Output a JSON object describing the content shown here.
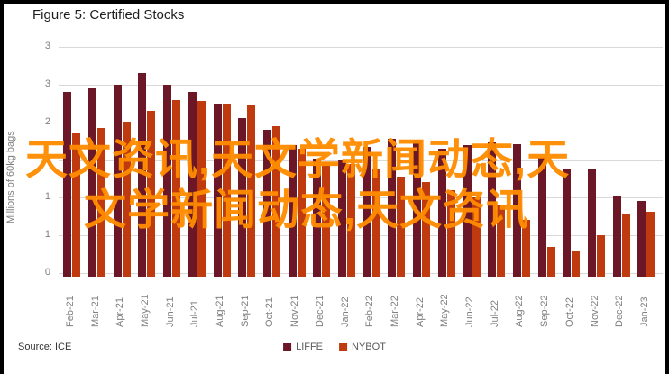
{
  "title": "Figure 5: Certified Stocks",
  "source": "Source: ICE",
  "watermark": {
    "line1": "天文资讯,天文学新闻动态,天",
    "line2": "文学新闻动态,天文资讯",
    "color": "#ff8c00"
  },
  "chart_data": {
    "type": "bar",
    "title": "Figure 5: Certified Stocks",
    "ylabel": "Millions of 60kg bags",
    "xlabel": "",
    "ylim": [
      0,
      3
    ],
    "ytick_step": 0.5,
    "ytick_labels_top_to_bottom": [
      "3",
      "3",
      "2",
      "2",
      "1",
      "1",
      "0"
    ],
    "grid": true,
    "legend_position": "bottom-center",
    "categories": [
      "Feb-21",
      "Mar-21",
      "Apr-21",
      "May-21",
      "Jun-21",
      "Jul-21",
      "Aug-21",
      "Sep-21",
      "Oct-21",
      "Nov-21",
      "Dec-21",
      "Jan-22",
      "Feb-22",
      "Mar-22",
      "Apr-22",
      "May-22",
      "Jun-22",
      "Jul-22",
      "Aug-22",
      "Sep-22",
      "Oct-22",
      "Nov-22",
      "Dec-22",
      "Jan-23"
    ],
    "series": [
      {
        "name": "LIFFE",
        "color": "#6b1728",
        "values": [
          2.45,
          2.5,
          2.55,
          2.7,
          2.55,
          2.45,
          2.3,
          2.1,
          1.95,
          1.75,
          1.57,
          1.55,
          1.72,
          1.83,
          1.82,
          1.7,
          1.74,
          1.78,
          1.76,
          1.58,
          1.43,
          1.44,
          1.06,
          1.0
        ]
      },
      {
        "name": "NYBOT",
        "color": "#bf3a0f",
        "values": [
          1.9,
          1.97,
          2.06,
          2.2,
          2.34,
          2.33,
          2.3,
          2.27,
          2.0,
          1.7,
          1.52,
          1.5,
          1.43,
          1.33,
          1.25,
          1.15,
          1.05,
          0.95,
          0.75,
          0.4,
          0.35,
          0.55,
          0.84,
          0.86
        ]
      }
    ]
  }
}
